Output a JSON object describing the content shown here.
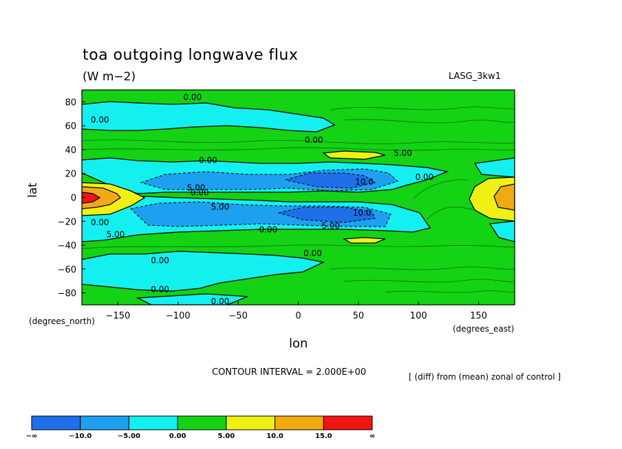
{
  "header": {
    "title": "toa outgoing longwave flux",
    "units": "(W m−2)",
    "dataset_tag": "LASG_3kw1"
  },
  "axes": {
    "ylabel": "lat",
    "xlabel": "lon",
    "y_unit": "(degrees_north)",
    "x_unit": "(degrees_east)"
  },
  "footer": {
    "contour_interval": "CONTOUR INTERVAL = 2.000E+00",
    "description": "[ (diff) from (mean) zonal of control ]"
  },
  "chart_data": {
    "type": "heatmap",
    "title": "toa outgoing longwave flux",
    "subtitle": "(W m−2)",
    "xlabel": "lon",
    "ylabel": "lat",
    "xlim": [
      -180,
      180
    ],
    "ylim": [
      -90,
      90
    ],
    "x_ticks": [
      -150,
      -100,
      -50,
      0,
      50,
      100,
      150
    ],
    "y_ticks": [
      80,
      60,
      40,
      20,
      0,
      -20,
      -40,
      -60,
      -80
    ],
    "levels": [
      -10,
      -5,
      0,
      5,
      10,
      15
    ],
    "colorbar_labels": [
      "−∞",
      "−10.0",
      "−5.00",
      "0.00",
      "5.00",
      "10.0",
      "15.0",
      "∞"
    ],
    "colorbar_colors": [
      "#1e6fe8",
      "#1ea0f0",
      "#14f0f0",
      "#14d214",
      "#f0f014",
      "#f0aa14",
      "#f01414"
    ],
    "contour_labels": [
      {
        "text": "0.00",
        "lon": -88,
        "lat": 84
      },
      {
        "text": "0.00",
        "lon": -165,
        "lat": 65
      },
      {
        "text": "0.00",
        "lon": 13,
        "lat": 48
      },
      {
        "text": "5.00",
        "lon": 87,
        "lat": 37
      },
      {
        "text": "0.00",
        "lon": -75,
        "lat": 31
      },
      {
        "text": "10.0",
        "lon": 55,
        "lat": 13
      },
      {
        "text": "0.00",
        "lon": 105,
        "lat": 17
      },
      {
        "text": "5.00",
        "lon": -85,
        "lat": 8
      },
      {
        "text": "0.00",
        "lon": -82,
        "lat": 4
      },
      {
        "text": "5.00",
        "lon": -65,
        "lat": -8
      },
      {
        "text": "10.0",
        "lon": 53,
        "lat": -13
      },
      {
        "text": "5.00",
        "lon": 27,
        "lat": -24
      },
      {
        "text": "0.00",
        "lon": -165,
        "lat": -21
      },
      {
        "text": "5.00",
        "lon": -152,
        "lat": -31
      },
      {
        "text": "0.00",
        "lon": -25,
        "lat": -27
      },
      {
        "text": "0.00",
        "lon": -115,
        "lat": -53
      },
      {
        "text": "0.00",
        "lon": 12,
        "lat": -47
      },
      {
        "text": "0.00",
        "lon": -115,
        "lat": -77
      },
      {
        "text": "0.00",
        "lon": -65,
        "lat": -87
      }
    ]
  }
}
